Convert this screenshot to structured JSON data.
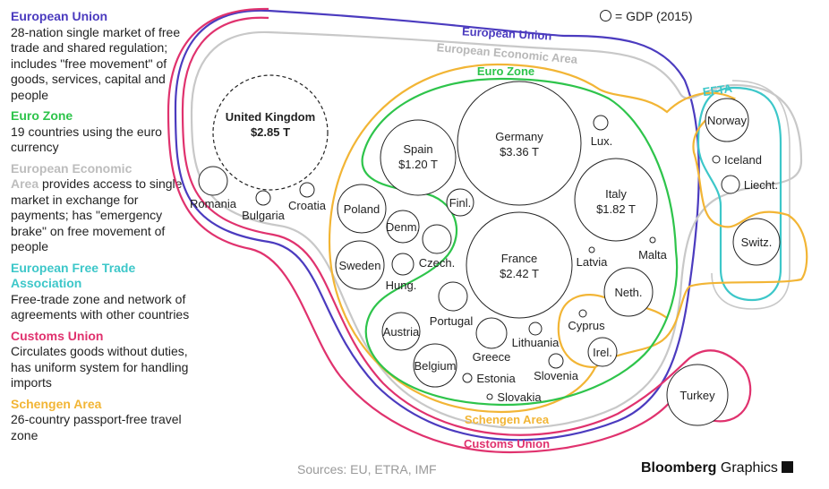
{
  "legend": {
    "eu": {
      "title": "European Union",
      "desc": "28-nation single market of free trade and shared regulation; includes \"free movement\" of goods, services, capital and people",
      "color": "#4b3bbf"
    },
    "ez": {
      "title": "Euro Zone",
      "desc": "19 countries using the euro currency",
      "color": "#2ec44b"
    },
    "eea": {
      "title_a": "European Economic",
      "title_b": "Area",
      "desc": " provides access to single market in exchange for payments; has \"emergency brake\" on free movement of people",
      "color": "#bdbdbd"
    },
    "efta": {
      "title": "European Free Trade Association",
      "desc": "Free-trade zone and network of agreements with other countries",
      "color": "#3dc7c9"
    },
    "cu": {
      "title": "Customs Union",
      "desc": "Circulates goods without duties, has uniform system for handling imports",
      "color": "#e0326e"
    },
    "sa": {
      "title": "Schengen Area",
      "desc": "26-country passport-free travel zone",
      "color": "#f2b535"
    }
  },
  "gdp_key": "= GDP (2015)",
  "ring_labels": {
    "eu": "European Union",
    "eea": "European Economic Area",
    "ez": "Euro Zone",
    "efta": "EFTA",
    "schengen": "Schengen Area",
    "customs": "Customs Union"
  },
  "countries": {
    "uk": {
      "name": "United Kingdom",
      "gdp": "$2.85 T"
    },
    "germany": {
      "name": "Germany",
      "gdp": "$3.36 T"
    },
    "france": {
      "name": "France",
      "gdp": "$2.42 T"
    },
    "italy": {
      "name": "Italy",
      "gdp": "$1.82 T"
    },
    "spain": {
      "name": "Spain",
      "gdp": "$1.20 T"
    },
    "romania": "Romania",
    "bulgaria": "Bulgaria",
    "croatia": "Croatia",
    "poland": "Poland",
    "denmark": "Denm.",
    "sweden": "Sweden",
    "czech": "Czech.",
    "hungary": "Hung.",
    "finland": "Finl.",
    "lux": "Lux.",
    "latvia": "Latvia",
    "malta": "Malta",
    "netherlands": "Neth.",
    "portugal": "Portugal",
    "austria": "Austria",
    "belgium": "Belgium",
    "greece": "Greece",
    "lithuania": "Lithuania",
    "estonia": "Estonia",
    "slovakia": "Slovakia",
    "slovenia": "Slovenia",
    "cyprus": "Cyprus",
    "ireland": "Irel.",
    "norway": "Norway",
    "iceland": "Iceland",
    "liecht": "Liecht.",
    "switz": "Switz.",
    "turkey": "Turkey"
  },
  "sources": "Sources: EU, ETRA, IMF",
  "brand": {
    "bold": "Bloomberg",
    "rest": "Graphics"
  }
}
